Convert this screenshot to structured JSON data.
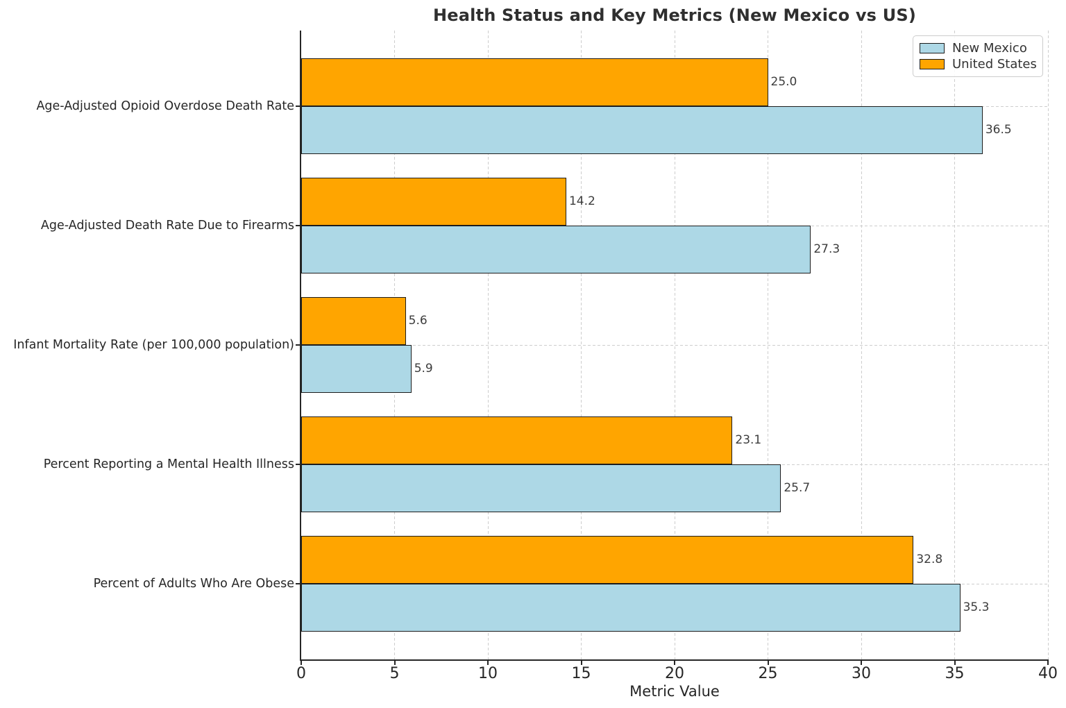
{
  "page": {
    "background": "#ffffff"
  },
  "chart_data": {
    "type": "bar",
    "orientation": "horizontal",
    "title": "Health Status and Key Metrics (New Mexico vs US)",
    "xlabel": "Metric Value",
    "ylabel": "",
    "xlim": [
      0,
      40
    ],
    "xticks": [
      0,
      5,
      10,
      15,
      20,
      25,
      30,
      35,
      40
    ],
    "grid": true,
    "legend_position": "upper right",
    "categories": [
      "Age-Adjusted Opioid Overdose Death Rate",
      "Age-Adjusted Death Rate Due to Firearms",
      "Infant Mortality Rate (per 100,000 population)",
      "Percent Reporting a Mental Health Illness",
      "Percent of Adults Who Are Obese"
    ],
    "series": [
      {
        "name": "New Mexico",
        "color": "#ADD8E6",
        "values": [
          36.5,
          27.3,
          5.9,
          25.7,
          35.3
        ]
      },
      {
        "name": "United States",
        "color": "#FFA500",
        "values": [
          25.0,
          14.2,
          5.6,
          23.1,
          32.8
        ]
      }
    ],
    "row_order_top_to_bottom": [
      "United States",
      "New Mexico"
    ],
    "bar_edge_color": "#1c1c1c",
    "value_label_decimals": 1
  },
  "legend": {
    "items": [
      {
        "label": "New Mexico",
        "color": "#ADD8E6"
      },
      {
        "label": "United States",
        "color": "#FFA500"
      }
    ]
  }
}
